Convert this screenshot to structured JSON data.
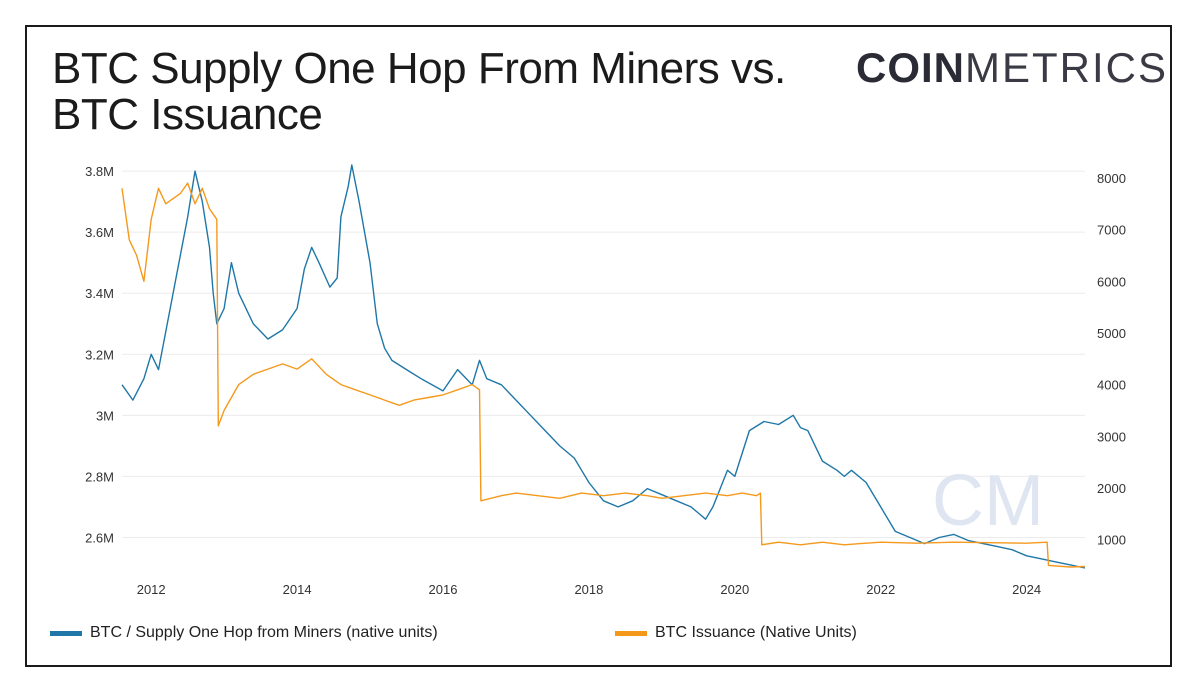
{
  "title": "BTC Supply One Hop From Miners vs. BTC Issuance",
  "logo": {
    "bold": "COIN",
    "light": "METRICS"
  },
  "watermark": "CM",
  "chart_data": {
    "type": "line",
    "title": "BTC Supply One Hop From Miners vs. BTC Issuance",
    "x_ticks": [
      "2012",
      "2014",
      "2016",
      "2018",
      "2020",
      "2022",
      "2024"
    ],
    "x_range": [
      2011.6,
      2024.8
    ],
    "left_axis": {
      "ticks": [
        "2.6M",
        "2.8M",
        "3M",
        "3.2M",
        "3.4M",
        "3.6M",
        "3.8M"
      ],
      "tick_values": [
        2600000,
        2800000,
        3000000,
        3200000,
        3400000,
        3600000,
        3800000
      ],
      "range": [
        2500000,
        3820000
      ]
    },
    "right_axis": {
      "ticks": [
        "1000",
        "2000",
        "3000",
        "4000",
        "5000",
        "6000",
        "7000",
        "8000"
      ],
      "tick_values": [
        1000,
        2000,
        3000,
        4000,
        5000,
        6000,
        7000,
        8000
      ],
      "range": [
        450,
        8250
      ]
    },
    "grid": true,
    "legend_position": "bottom",
    "series": [
      {
        "name": "BTC / Supply One Hop from Miners (native units)",
        "axis": "left",
        "color": "#1f77a8",
        "x": [
          2011.6,
          2011.75,
          2011.9,
          2012.0,
          2012.1,
          2012.3,
          2012.5,
          2012.6,
          2012.7,
          2012.8,
          2012.85,
          2012.9,
          2013.0,
          2013.1,
          2013.2,
          2013.4,
          2013.6,
          2013.8,
          2014.0,
          2014.1,
          2014.2,
          2014.3,
          2014.45,
          2014.55,
          2014.6,
          2014.7,
          2014.75,
          2014.85,
          2015.0,
          2015.1,
          2015.2,
          2015.3,
          2015.5,
          2015.7,
          2016.0,
          2016.2,
          2016.4,
          2016.5,
          2016.6,
          2016.8,
          2017.0,
          2017.2,
          2017.4,
          2017.6,
          2017.8,
          2017.9,
          2018.0,
          2018.2,
          2018.4,
          2018.6,
          2018.8,
          2019.0,
          2019.2,
          2019.4,
          2019.5,
          2019.6,
          2019.7,
          2019.8,
          2019.9,
          2020.0,
          2020.2,
          2020.4,
          2020.6,
          2020.8,
          2020.9,
          2021.0,
          2021.2,
          2021.4,
          2021.5,
          2021.6,
          2021.8,
          2022.0,
          2022.2,
          2022.4,
          2022.6,
          2022.8,
          2023.0,
          2023.2,
          2023.4,
          2023.6,
          2023.8,
          2024.0,
          2024.2,
          2024.4,
          2024.6,
          2024.8
        ],
        "y": [
          3100000,
          3050000,
          3120000,
          3200000,
          3150000,
          3400000,
          3650000,
          3800000,
          3700000,
          3550000,
          3400000,
          3300000,
          3350000,
          3500000,
          3400000,
          3300000,
          3250000,
          3280000,
          3350000,
          3480000,
          3550000,
          3500000,
          3420000,
          3450000,
          3650000,
          3750000,
          3820000,
          3700000,
          3500000,
          3300000,
          3220000,
          3180000,
          3150000,
          3120000,
          3080000,
          3150000,
          3100000,
          3180000,
          3120000,
          3100000,
          3050000,
          3000000,
          2950000,
          2900000,
          2860000,
          2820000,
          2780000,
          2720000,
          2700000,
          2720000,
          2760000,
          2740000,
          2720000,
          2700000,
          2680000,
          2660000,
          2700000,
          2760000,
          2820000,
          2800000,
          2950000,
          2980000,
          2970000,
          3000000,
          2960000,
          2950000,
          2850000,
          2820000,
          2800000,
          2820000,
          2780000,
          2700000,
          2620000,
          2600000,
          2580000,
          2600000,
          2610000,
          2590000,
          2580000,
          2570000,
          2560000,
          2540000,
          2530000,
          2520000,
          2510000,
          2500000
        ]
      },
      {
        "name": "BTC Issuance (Native Units)",
        "axis": "right",
        "color": "#f5991c",
        "x": [
          2011.6,
          2011.7,
          2011.8,
          2011.9,
          2012.0,
          2012.1,
          2012.2,
          2012.3,
          2012.4,
          2012.5,
          2012.6,
          2012.7,
          2012.8,
          2012.9,
          2012.92,
          2013.0,
          2013.2,
          2013.4,
          2013.6,
          2013.8,
          2014.0,
          2014.2,
          2014.4,
          2014.6,
          2014.8,
          2015.0,
          2015.2,
          2015.4,
          2015.6,
          2015.8,
          2016.0,
          2016.2,
          2016.4,
          2016.5,
          2016.52,
          2016.8,
          2017.0,
          2017.3,
          2017.6,
          2017.9,
          2018.2,
          2018.5,
          2018.8,
          2019.0,
          2019.3,
          2019.6,
          2019.9,
          2020.1,
          2020.3,
          2020.35,
          2020.37,
          2020.6,
          2020.9,
          2021.2,
          2021.5,
          2021.7,
          2022.0,
          2022.5,
          2023.0,
          2023.5,
          2024.0,
          2024.28,
          2024.3,
          2024.6,
          2024.8
        ],
        "y": [
          7800,
          6800,
          6500,
          6000,
          7200,
          7800,
          7500,
          7600,
          7700,
          7900,
          7500,
          7800,
          7400,
          7200,
          3200,
          3500,
          4000,
          4200,
          4300,
          4400,
          4300,
          4500,
          4200,
          4000,
          3900,
          3800,
          3700,
          3600,
          3700,
          3750,
          3800,
          3900,
          4000,
          3900,
          1750,
          1850,
          1900,
          1850,
          1800,
          1900,
          1850,
          1900,
          1850,
          1800,
          1850,
          1900,
          1850,
          1900,
          1850,
          1900,
          900,
          950,
          900,
          950,
          900,
          920,
          950,
          930,
          950,
          940,
          930,
          950,
          500,
          470,
          480
        ]
      }
    ]
  }
}
